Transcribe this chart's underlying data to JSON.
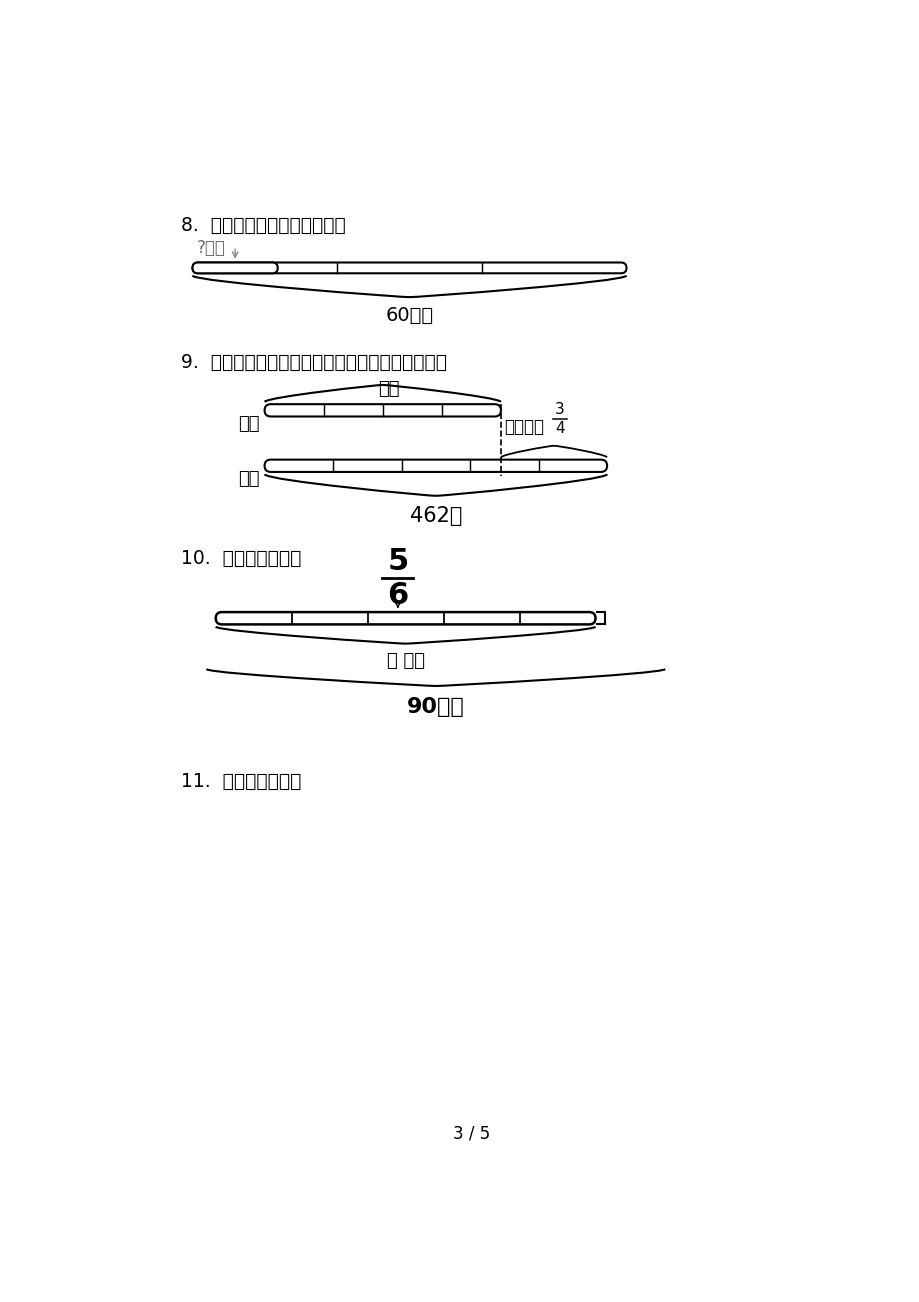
{
  "bg_color": "#ffffff",
  "text_color": "#000000",
  "gray_text": "#666666",
  "q8_label": "8.  看图列综合算式，不计算。",
  "q8_top_label": "?千克",
  "q8_bottom_label": "60千克",
  "q9_label": "9.  看图解决问题，只列综合算式或方程，不计算。",
  "q9_top_label": "？人",
  "q9_boy_label": "男生",
  "q9_girl_label": "女生",
  "q9_right_label": "比男生多",
  "q9_right_frac_num": "3",
  "q9_right_frac_den": "4",
  "q9_bottom_label": "462人",
  "q10_label": "10.  看图列式计算。",
  "q10_frac_num": "5",
  "q10_frac_den": "6",
  "q10_middle_label": "？ 千米",
  "q10_bottom_label": "90千米",
  "q11_label": "11.  看图列式计算。",
  "page_label": "3 / 5",
  "font_size_label": 13.5,
  "font_size_diagram": 13
}
